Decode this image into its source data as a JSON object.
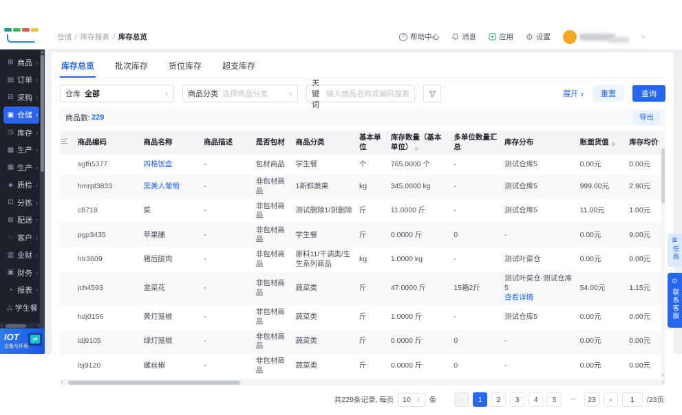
{
  "colors": {
    "accent": "#2468f2",
    "sidebar_bg": "#1d212c",
    "sidebar_active": "#2b63f0",
    "avatar": "#f5a623",
    "logo_bars": [
      "#1f9e8e",
      "#3dba61",
      "#e05c5c",
      "#f0c33c"
    ]
  },
  "topbar": {
    "breadcrumb": [
      "仓储",
      "库存报表",
      "库存总览"
    ],
    "help": "帮助中心",
    "messages": "消息",
    "apps": "应用",
    "settings": "设置"
  },
  "sidebar": {
    "items": [
      {
        "label": "商品",
        "icon": "products-icon",
        "glyph": "⊞",
        "active": false
      },
      {
        "label": "订单",
        "icon": "orders-icon",
        "glyph": "▤",
        "active": false
      },
      {
        "label": "采购",
        "icon": "purchase-icon",
        "glyph": "⊟",
        "active": false
      },
      {
        "label": "仓储",
        "icon": "warehouse-icon",
        "glyph": "▣",
        "active": true
      },
      {
        "label": "库存",
        "icon": "inventory-icon",
        "glyph": "◷",
        "active": false
      },
      {
        "label": "生产",
        "icon": "production-icon",
        "glyph": "▦",
        "active": false
      },
      {
        "label": "生产",
        "icon": "production2-icon",
        "glyph": "▦",
        "active": false
      },
      {
        "label": "质检",
        "icon": "quality-icon",
        "glyph": "◈",
        "active": false
      },
      {
        "label": "分拣",
        "icon": "sorting-icon",
        "glyph": "⊡",
        "active": false
      },
      {
        "label": "配送",
        "icon": "delivery-icon",
        "glyph": "⊠",
        "active": false
      },
      {
        "label": "客户",
        "icon": "customers-icon",
        "glyph": "◌",
        "active": false
      },
      {
        "label": "业财",
        "icon": "biz-finance-icon",
        "glyph": "▥",
        "active": false
      },
      {
        "label": "财务",
        "icon": "finance-icon",
        "glyph": "▣",
        "active": false
      },
      {
        "label": "报表",
        "icon": "reports-icon",
        "glyph": "◔",
        "active": false
      },
      {
        "label": "学生餐",
        "icon": "student-meal-icon",
        "glyph": "△",
        "active": false
      }
    ],
    "iot": {
      "title": "IOT",
      "subtitle": "设备与环境"
    }
  },
  "tabs": [
    {
      "label": "库存总览",
      "active": true
    },
    {
      "label": "批次库存",
      "active": false
    },
    {
      "label": "货位库存",
      "active": false
    },
    {
      "label": "超支库存",
      "active": false
    }
  ],
  "filters": {
    "warehouse_label": "仓库",
    "warehouse_value": "全部",
    "category_label": "商品分类",
    "category_placeholder": "选择商品分类",
    "keyword_label": "关键词",
    "keyword_placeholder": "输入商品名称或编码搜索",
    "expand": "展开",
    "reset": "重置",
    "search": "查询"
  },
  "toolbar": {
    "count_label": "商品数:",
    "count": "229",
    "export": "导出"
  },
  "table": {
    "columns": [
      {
        "label": "",
        "sortable": false
      },
      {
        "label": "商品编码",
        "sortable": false
      },
      {
        "label": "商品名称",
        "sortable": false
      },
      {
        "label": "商品描述",
        "sortable": false
      },
      {
        "label": "是否包材",
        "sortable": false
      },
      {
        "label": "商品分类",
        "sortable": false
      },
      {
        "label": "基本单位",
        "sortable": false
      },
      {
        "label": "库存数量（基本单位）",
        "sortable": true
      },
      {
        "label": "多单位数量汇总",
        "sortable": false
      },
      {
        "label": "库存分布",
        "sortable": false
      },
      {
        "label": "账面货值",
        "sortable": true
      },
      {
        "label": "库存均价",
        "sortable": false
      }
    ],
    "rows": [
      {
        "code": "sgfh5377",
        "name": "四格饭盒",
        "name_link": true,
        "desc": "-",
        "pack": "包材商品",
        "cat": "学生餐",
        "unit": "个",
        "qty": "765.0000 个",
        "multi": "-",
        "dist": "测试仓库5",
        "dist_link": "",
        "value": "0.00元",
        "avg": "0.00元"
      },
      {
        "code": "hmrpt3833",
        "name": "黑美人葡萄",
        "name_link": true,
        "desc": "-",
        "pack": "非包材商品",
        "cat": "1新鲜蔬果",
        "unit": "kg",
        "qty": "345.0000 kg",
        "multi": "-",
        "dist": "测试仓库5",
        "dist_link": "",
        "value": "999.00元",
        "avg": "2.90元"
      },
      {
        "code": "c8718",
        "name": "菜",
        "name_link": false,
        "desc": "-",
        "pack": "非包材商品",
        "cat": "测试删除1/测删除",
        "unit": "斤",
        "qty": "11.0000 斤",
        "multi": "-",
        "dist": "测试仓库5",
        "dist_link": "",
        "value": "11.00元",
        "avg": "1.00元"
      },
      {
        "code": "pgp3435",
        "name": "苹果脯",
        "name_link": false,
        "desc": "-",
        "pack": "非包材商品",
        "cat": "学生餐",
        "unit": "斤",
        "qty": "0.0000 斤",
        "multi": "0",
        "dist": "-",
        "dist_link": "",
        "value": "0.00元",
        "avg": "9.00元"
      },
      {
        "code": "htr3609",
        "name": "猪后腿肉",
        "name_link": false,
        "desc": "-",
        "pack": "非包材商品",
        "cat": "原料11/干调类/生生系列商品",
        "unit": "kg",
        "qty": "1.0000 kg",
        "multi": "-",
        "dist": "测试叶菜仓",
        "dist_link": "",
        "value": "0.00元",
        "avg": "0.00元"
      },
      {
        "code": "jch4593",
        "name": "韭菜花",
        "name_link": false,
        "desc": "-",
        "pack": "非包材商品",
        "cat": "蔬菜类",
        "unit": "斤",
        "qty": "47.0000 斤",
        "multi": "15箱2斤",
        "dist": "测试叶菜仓·测试仓库5",
        "dist_link": "查看详情",
        "value": "54.00元",
        "avg": "1.15元"
      },
      {
        "code": "hdj0156",
        "name": "黄灯笼椒",
        "name_link": false,
        "desc": "-",
        "pack": "非包材商品",
        "cat": "蔬菜类",
        "unit": "斤",
        "qty": "1.0000 斤",
        "multi": "-",
        "dist": "测试仓库5",
        "dist_link": "",
        "value": "0.00元",
        "avg": "0.00元"
      },
      {
        "code": "ldj9105",
        "name": "绿灯笼椒",
        "name_link": false,
        "desc": "-",
        "pack": "非包材商品",
        "cat": "蔬菜类",
        "unit": "斤",
        "qty": "0.0000 斤",
        "multi": "0",
        "dist": "-",
        "dist_link": "",
        "value": "0.00元",
        "avg": "0.00元"
      },
      {
        "code": "lsj9120",
        "name": "螺丝椒",
        "name_link": false,
        "desc": "-",
        "pack": "非包材商品",
        "cat": "蔬菜类",
        "unit": "斤",
        "qty": "0.0000 斤",
        "multi": "0",
        "dist": "-",
        "dist_link": "",
        "value": "0.00元",
        "avg": "0.00元"
      }
    ]
  },
  "pagination": {
    "summary": "共229条记录, 每页",
    "page_size": "10",
    "size_unit": "条",
    "pages": [
      "1",
      "2",
      "3",
      "4",
      "5",
      "...",
      "23"
    ],
    "active_page": "1",
    "jump_value": "1",
    "total_pages": "/23页"
  },
  "floats": {
    "tasks": "任务",
    "service": "联系客服"
  }
}
